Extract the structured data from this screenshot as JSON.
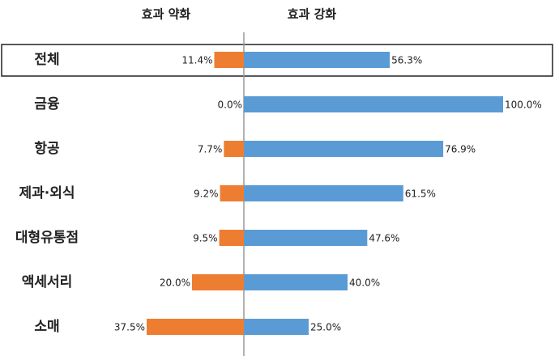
{
  "chart_data": {
    "type": "diverging_bar",
    "categories": [
      "전체",
      "금융",
      "항공",
      "제과·외식",
      "대형유통점",
      "액세서리",
      "소매"
    ],
    "series": [
      {
        "name": "효과 약화",
        "color": "#ed7d31",
        "values": [
          11.4,
          0.0,
          7.7,
          9.2,
          9.5,
          20.0,
          37.5
        ],
        "value_labels": [
          "11.4%",
          "0.0%",
          "7.7%",
          "9.2%",
          "9.5%",
          "20.0%",
          "37.5%"
        ]
      },
      {
        "name": "효과 강화",
        "color": "#5b9bd5",
        "values": [
          56.3,
          100.0,
          76.9,
          61.5,
          47.6,
          40.0,
          25.0
        ],
        "value_labels": [
          "56.3%",
          "100.0%",
          "76.9%",
          "61.5%",
          "47.6%",
          "40.0%",
          "25.0%"
        ]
      }
    ]
  }
}
